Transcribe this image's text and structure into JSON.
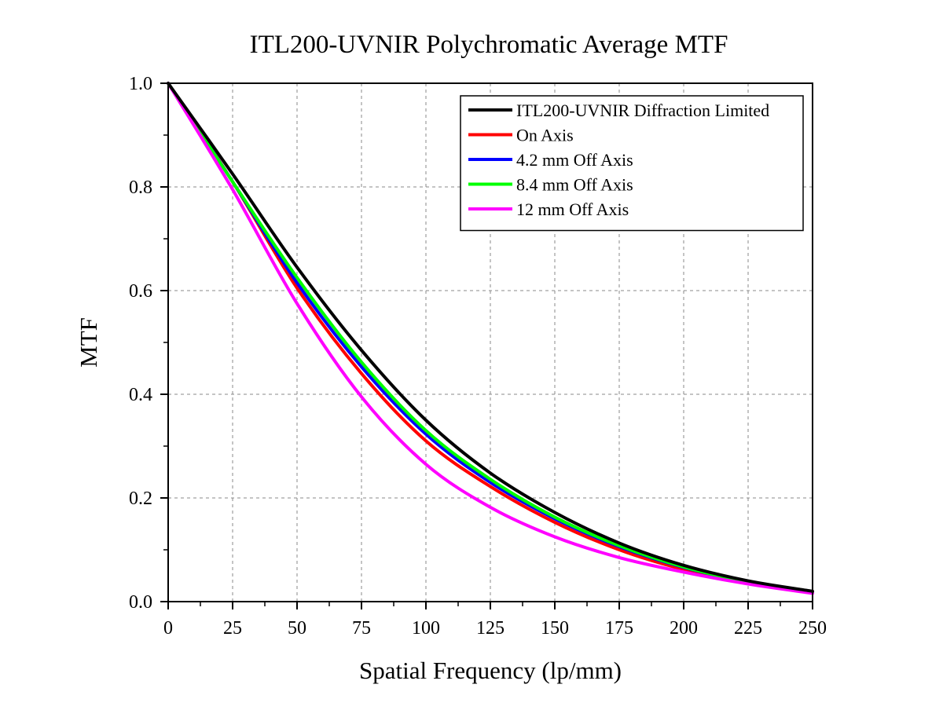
{
  "chart_data": {
    "type": "line",
    "title": "ITL200-UVNIR Polychromatic Average MTF",
    "xlabel": "Spatial Frequency (lp/mm)",
    "ylabel": "MTF",
    "xlim": [
      0,
      250
    ],
    "ylim": [
      0,
      1.0
    ],
    "xticks": [
      "0",
      "25",
      "50",
      "75",
      "100",
      "125",
      "150",
      "175",
      "200",
      "225",
      "250"
    ],
    "xtick_values": [
      0,
      25,
      50,
      75,
      100,
      125,
      150,
      175,
      200,
      225,
      250
    ],
    "yticks": [
      "0.0",
      "0.2",
      "0.4",
      "0.6",
      "0.8",
      "1.0"
    ],
    "ytick_values": [
      0,
      0.2,
      0.4,
      0.6,
      0.8,
      1.0
    ],
    "grid": true,
    "legend_position": "top-right",
    "x": [
      0,
      25,
      50,
      75,
      100,
      125,
      150,
      175,
      200,
      225,
      250
    ],
    "series": [
      {
        "name": "ITL200-UVNIR Diffraction Limited",
        "color": "#000000",
        "values": [
          1.0,
          0.825,
          0.645,
          0.485,
          0.35,
          0.248,
          0.172,
          0.113,
          0.07,
          0.04,
          0.02
        ]
      },
      {
        "name": "On Axis",
        "color": "#ff0000",
        "values": [
          1.0,
          0.81,
          0.605,
          0.44,
          0.31,
          0.222,
          0.153,
          0.1,
          0.062,
          0.036,
          0.018
        ]
      },
      {
        "name": "4.2 mm Off Axis",
        "color": "#0000ff",
        "values": [
          1.0,
          0.81,
          0.615,
          0.453,
          0.323,
          0.23,
          0.16,
          0.106,
          0.066,
          0.038,
          0.019
        ]
      },
      {
        "name": "8.4 mm Off Axis",
        "color": "#00ff00",
        "values": [
          1.0,
          0.81,
          0.625,
          0.462,
          0.33,
          0.236,
          0.163,
          0.108,
          0.067,
          0.038,
          0.019
        ]
      },
      {
        "name": "12 mm Off Axis",
        "color": "#ff00ff",
        "values": [
          1.0,
          0.795,
          0.575,
          0.395,
          0.265,
          0.182,
          0.125,
          0.085,
          0.057,
          0.034,
          0.016
        ]
      }
    ]
  }
}
